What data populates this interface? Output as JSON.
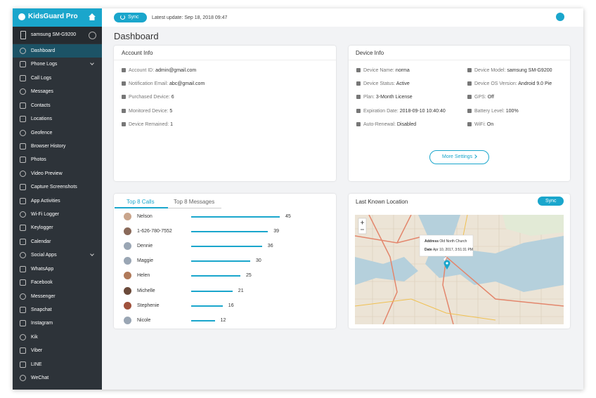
{
  "sidebar": {
    "brand": "KidsGuard Pro",
    "device": "samsung SM-G9200",
    "menu": [
      "Dashboard",
      "Phone Logs",
      "Call Logs",
      "Messages",
      "Contacts",
      "Locations",
      "Geofence",
      "Browser History",
      "Photos",
      "Video Preview",
      "Capture Screenshots",
      "App Activities",
      "Wi-Fi Logger",
      "Keylogger",
      "Calendar",
      "Social Apps",
      "WhatsApp",
      "Facebook",
      "Messenger",
      "Snapchat",
      "Instagram",
      "Kik",
      "Viber",
      "LINE",
      "WeChat"
    ]
  },
  "topbar": {
    "sync": "Sync",
    "last_update": "Latest update: Sep 18, 2018 09:47"
  },
  "page_title": "Dashboard",
  "account_info": {
    "title": "Account Info",
    "fields": [
      {
        "label": "Account ID:",
        "value": "admin@gmail.com"
      },
      {
        "label": "Notification Email:",
        "value": "abc@gmail.com"
      },
      {
        "label": "Purchased Device:",
        "value": "6"
      },
      {
        "label": "Monitored Device:",
        "value": "5"
      },
      {
        "label": "Device Remained:",
        "value": "1"
      }
    ]
  },
  "device_info": {
    "title": "Device Info",
    "fields": [
      {
        "label": "Device Name:",
        "value": "norma"
      },
      {
        "label": "Device Status:",
        "value": "Active"
      },
      {
        "label": "Plan:",
        "value": "3-Month License"
      },
      {
        "label": "Expiration Date:",
        "value": "2018-09-10 10:40:40"
      },
      {
        "label": "Auto-Renewal:",
        "value": "Disabled"
      },
      {
        "label": "Device Model:",
        "value": "samsung SM-G9200"
      },
      {
        "label": "Device OS Version:",
        "value": "Android 9.0 Pie"
      },
      {
        "label": "GPS:",
        "value": "Off"
      },
      {
        "label": "Battery Level:",
        "value": "100%"
      },
      {
        "label": "WiFi:",
        "value": "On"
      }
    ],
    "button": "More Settings"
  },
  "calls": {
    "tabs": [
      "Top 8 Calls",
      "Top 8 Messages"
    ],
    "rows": [
      {
        "name": "Nelson",
        "count": 45
      },
      {
        "name": "1-626-780-7552",
        "count": 39
      },
      {
        "name": "Dennie",
        "count": 36
      },
      {
        "name": "Maggie",
        "count": 30
      },
      {
        "name": "Helen",
        "count": 25
      },
      {
        "name": "Michelle",
        "count": 21
      },
      {
        "name": "Stephenie",
        "count": 16
      },
      {
        "name": "Nicole",
        "count": 12
      }
    ]
  },
  "location": {
    "title": "Last Known Location",
    "sync": "Sync",
    "address_label": "Address",
    "address": "Old North Church",
    "date_label": "Date",
    "date": "Apr 10, 2017, 3:51:31 PM"
  }
}
